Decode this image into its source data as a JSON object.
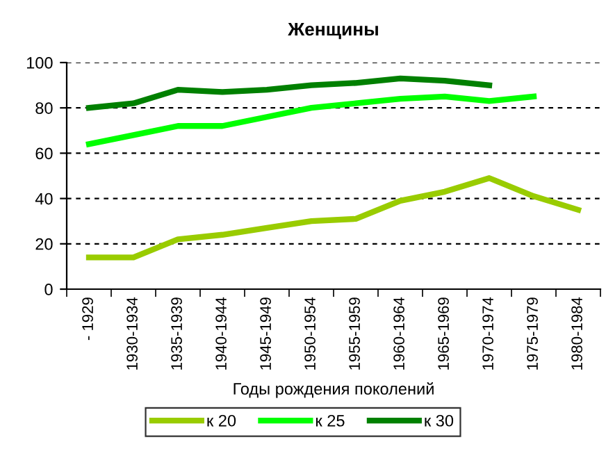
{
  "chart_data": {
    "type": "line",
    "title": "Женщины",
    "xlabel": "Годы рождения поколений",
    "categories": [
      "- 1929",
      "1930-1934",
      "1935-1939",
      "1940-1944",
      "1945-1949",
      "1950-1954",
      "1955-1959",
      "1960-1964",
      "1965-1969",
      "1970-1974",
      "1975-1979",
      "1980-1984"
    ],
    "series": [
      {
        "name": "к 20",
        "color": "#99cc00",
        "values": [
          14,
          14,
          22,
          24,
          27,
          30,
          31,
          39,
          43,
          49,
          41,
          35
        ]
      },
      {
        "name": "к 25",
        "color": "#00ff00",
        "values": [
          64,
          68,
          72,
          72,
          76,
          80,
          82,
          84,
          85,
          83,
          85,
          null
        ]
      },
      {
        "name": "к 30",
        "color": "#008000",
        "values": [
          80,
          82,
          88,
          87,
          88,
          90,
          91,
          93,
          92,
          90,
          null,
          null
        ]
      }
    ],
    "ylim": [
      0,
      100
    ],
    "yticks": [
      0,
      20,
      40,
      60,
      80,
      100
    ],
    "grid": "y",
    "legend": "bottom",
    "marker": "none",
    "line_style": "solid"
  }
}
